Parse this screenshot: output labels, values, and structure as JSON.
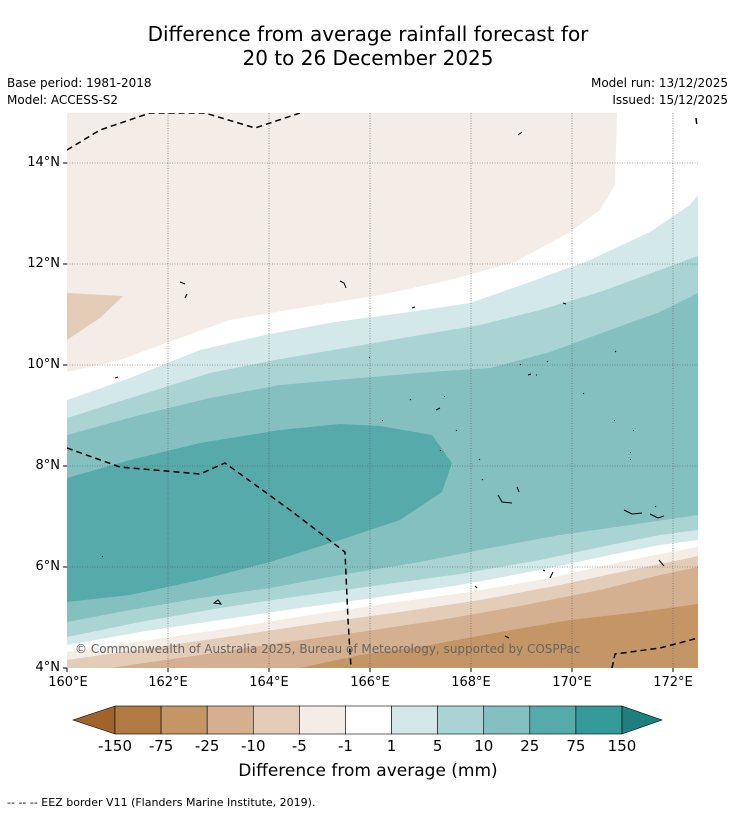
{
  "header": {
    "title_line1": "Difference from average rainfall forecast for",
    "title_line2": "20 to 26 December 2025",
    "base_period": "Base period: 1981-2018",
    "model": "Model: ACCESS-S2",
    "model_run": "Model run: 13/12/2025",
    "issued": "Issued: 15/12/2025"
  },
  "map": {
    "lat_labels": [
      "14°N",
      "12°N",
      "10°N",
      "8°N",
      "6°N",
      "4°N"
    ],
    "lon_labels": [
      "160°E",
      "162°E",
      "164°E",
      "166°E",
      "168°E",
      "170°E",
      "172°E"
    ],
    "copyright": "© Commonwealth of Australia 2025, Bureau of Meteorology, supported by COSPPac"
  },
  "colorbar": {
    "ticks": [
      "-150",
      "-75",
      "-25",
      "-10",
      "-5",
      "-1",
      "1",
      "5",
      "10",
      "25",
      "75",
      "150"
    ],
    "colors": [
      "#a0642a",
      "#b27a43",
      "#c49565",
      "#d4b090",
      "#e3cdb9",
      "#f4ece6",
      "#ffffff",
      "#d3e8e8",
      "#aad4d4",
      "#84c0c0",
      "#57aaaa",
      "#339999",
      "#1f7f7f"
    ],
    "title": "Difference from average (mm)"
  },
  "footnote": "--  --  -- EEZ border V11 (Flanders Marine Institute, 2019)."
}
